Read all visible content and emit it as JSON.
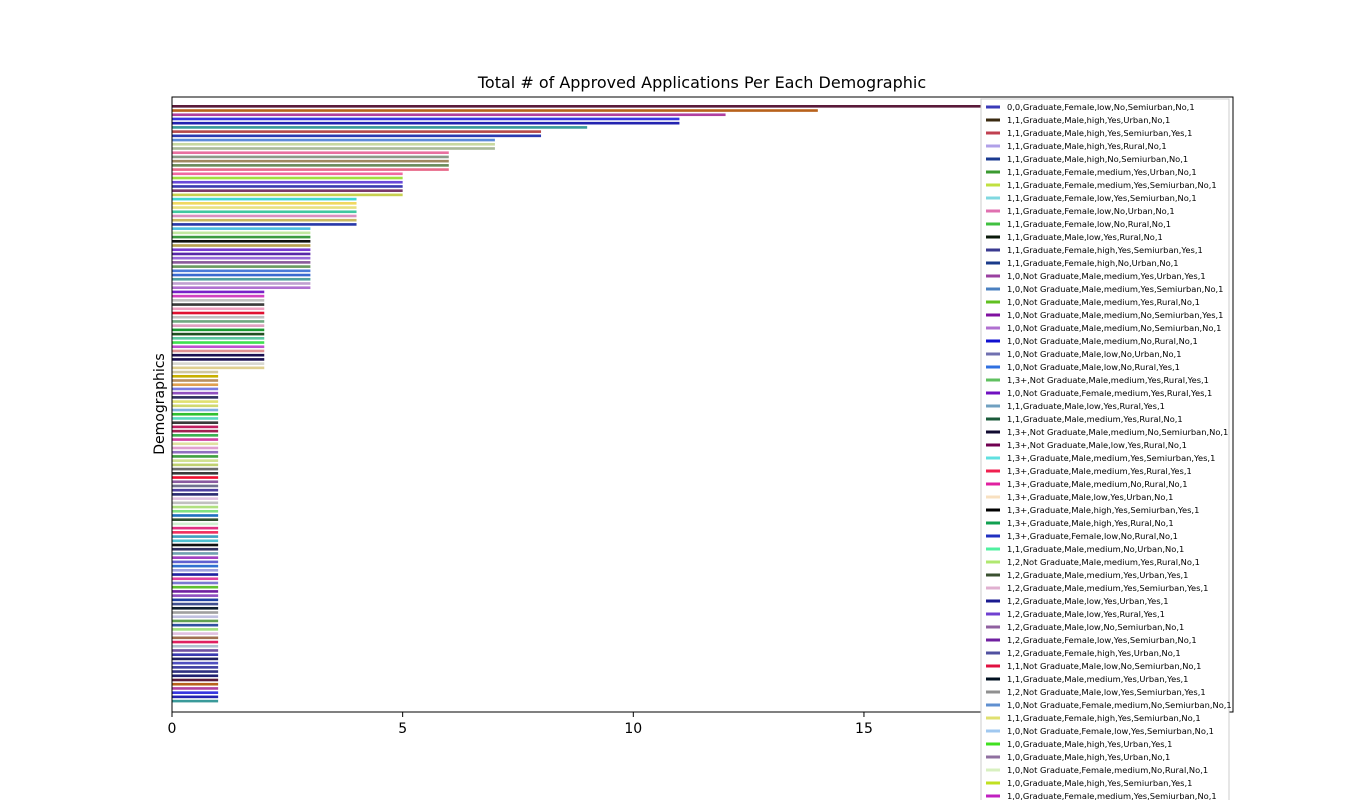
{
  "chart_data": {
    "type": "bar",
    "orientation": "horizontal",
    "title": "Total # of Approved Applications Per Each Demographic",
    "xlabel": "",
    "ylabel": "Demographics",
    "xlim": [
      0,
      23
    ],
    "x_ticks": [
      "0",
      "5",
      "10",
      "15"
    ],
    "grid": false,
    "legend_position": "right, overflowing plot",
    "values": [
      20,
      14,
      12,
      11,
      11,
      9,
      8,
      8,
      7,
      7,
      7,
      6,
      6,
      6,
      6,
      6,
      5,
      5,
      5,
      5,
      5,
      5,
      4,
      4,
      4,
      4,
      4,
      4,
      4,
      3,
      3,
      3,
      3,
      3,
      3,
      3,
      3,
      3,
      3,
      3,
      3,
      3,
      3,
      3,
      2,
      2,
      2,
      2,
      2,
      2,
      2,
      2,
      2,
      2,
      2,
      2,
      2,
      2,
      2,
      2,
      2,
      2,
      2,
      1,
      1,
      1,
      1,
      1,
      1,
      1,
      1,
      1,
      1,
      1,
      1,
      1,
      1,
      1,
      1,
      1,
      1,
      1,
      1,
      1,
      1,
      1,
      1,
      1,
      1,
      1,
      1,
      1,
      1,
      1,
      1,
      1,
      1,
      1,
      1,
      1,
      1,
      1,
      1,
      1,
      1,
      1,
      1,
      1,
      1,
      1,
      1,
      1,
      1,
      1,
      1,
      1,
      1,
      1,
      1,
      1,
      1,
      1,
      1,
      1,
      1,
      1,
      1,
      1,
      1,
      1,
      1,
      1,
      1,
      1,
      1,
      1,
      1,
      1,
      1,
      1,
      1,
      1
    ],
    "bar_colors": [
      "#5a1a3a",
      "#b8621b",
      "#b040a0",
      "#3535e0",
      "#2323b0",
      "#3a9a9a",
      "#b54a4a",
      "#2a3ab0",
      "#5b8ad8",
      "#c8d8a0",
      "#a8b898",
      "#e870a0",
      "#8a9a88",
      "#a08860",
      "#6a8a5a",
      "#e86a8a",
      "#f06aa0",
      "#a0e040",
      "#6a4ad8",
      "#3a3ab0",
      "#7a3a6a",
      "#c8d050",
      "#40d8d0",
      "#f0d860",
      "#e8e080",
      "#40c8a0",
      "#d890c0",
      "#c8b860",
      "#2838a8",
      "#50c0e0",
      "#c0e8a0",
      "#3a9a40",
      "#101010",
      "#b8a050",
      "#7a3ad0",
      "#5828a8",
      "#9868d8",
      "#8a5a9a",
      "#6a9a60",
      "#4a7ad8",
      "#3a6ad0",
      "#50a0a0",
      "#c0a0d0",
      "#b070d0",
      "#7820c8",
      "#d040c0",
      "#c0c0c0",
      "#3a3a3a",
      "#f0a0c0",
      "#e01030",
      "#c0c0c0",
      "#70a880",
      "#e0a0c0",
      "#1a9a30",
      "#205020",
      "#5ac8a0",
      "#40e050",
      "#c050d0",
      "#e09090",
      "#1a1050",
      "#1a1050",
      "#d8d8d0",
      "#e0d090",
      "#d0c8a0",
      "#c8b000",
      "#b89060",
      "#e0a050",
      "#7a7ae0",
      "#9050c0",
      "#303060",
      "#e0e070",
      "#d0d870",
      "#80b0e0",
      "#30c030",
      "#5ad8c0",
      "#3a3a3a",
      "#c02060",
      "#a02050",
      "#3ab050",
      "#d040a0",
      "#e0e0a0",
      "#e0a0d0",
      "#9070c0",
      "#40a040",
      "#d0e090",
      "#c0d070",
      "#6a6a6a",
      "#3a3a3a",
      "#f01030",
      "#8a5aa0",
      "#707090",
      "#5040a0",
      "#2a2a70",
      "#e0c0e0",
      "#c0c0c0",
      "#b0e080",
      "#80e080",
      "#2070c0",
      "#305030",
      "#d0f0d0",
      "#e03080",
      "#f03060",
      "#40a0c0",
      "#50c0d0",
      "#101010",
      "#303060",
      "#70a0b0",
      "#a040c0",
      "#6060d0",
      "#3070d0",
      "#a0a0e0",
      "#2020a0",
      "#e040a0",
      "#7a7ad0",
      "#60c030",
      "#7020a0",
      "#9050c0",
      "#2040a0",
      "#405090",
      "#102030",
      "#a0a0a0",
      "#c0c0e0",
      "#60a050",
      "#3050a0",
      "#a0e080",
      "#e0c0e0",
      "#a07050",
      "#e02060",
      "#b0c0d0",
      "#7050a0",
      "#3a3ab0",
      "#202060",
      "#5050c0",
      "#4040a0",
      "#303080",
      "#202070"
    ],
    "legend": [
      {
        "label": "0,0,Graduate,Female,low,No,Semiurban,No,1",
        "color": "#3a3ab8"
      },
      {
        "label": "1,1,Graduate,Male,high,Yes,Urban,No,1",
        "color": "#3a2a10"
      },
      {
        "label": "1,1,Graduate,Male,high,Yes,Semiurban,Yes,1",
        "color": "#c04050"
      },
      {
        "label": "1,1,Graduate,Male,high,Yes,Rural,No,1",
        "color": "#b0a0e8"
      },
      {
        "label": "1,1,Graduate,Male,high,No,Semiurban,No,1",
        "color": "#1a3a90"
      },
      {
        "label": "1,1,Graduate,Female,medium,Yes,Urban,No,1",
        "color": "#3a9a30"
      },
      {
        "label": "1,1,Graduate,Female,medium,Yes,Semiurban,No,1",
        "color": "#c0e040"
      },
      {
        "label": "1,1,Graduate,Female,low,Yes,Semiurban,No,1",
        "color": "#80d8e0"
      },
      {
        "label": "1,1,Graduate,Female,low,No,Urban,No,1",
        "color": "#e070b0"
      },
      {
        "label": "1,1,Graduate,Female,low,No,Rural,No,1",
        "color": "#40c040"
      },
      {
        "label": "1,1,Graduate,Male,low,Yes,Rural,No,1",
        "color": "#0a1a0a"
      },
      {
        "label": "1,1,Graduate,Female,high,Yes,Semiurban,Yes,1",
        "color": "#3a3a90"
      },
      {
        "label": "1,1,Graduate,Female,high,No,Urban,No,1",
        "color": "#1a3a8a"
      },
      {
        "label": "1,0,Not Graduate,Male,medium,Yes,Urban,Yes,1",
        "color": "#9a40a0"
      },
      {
        "label": "1,0,Not Graduate,Male,medium,Yes,Semiurban,No,1",
        "color": "#4a80c0"
      },
      {
        "label": "1,0,Not Graduate,Male,medium,Yes,Rural,No,1",
        "color": "#60c020"
      },
      {
        "label": "1,0,Not Graduate,Male,medium,No,Semiurban,Yes,1",
        "color": "#8010a0"
      },
      {
        "label": "1,0,Not Graduate,Male,medium,No,Semiurban,No,1",
        "color": "#b070d0"
      },
      {
        "label": "1,0,Not Graduate,Male,medium,No,Rural,No,1",
        "color": "#1010d0"
      },
      {
        "label": "1,0,Not Graduate,Male,low,No,Urban,No,1",
        "color": "#7070b0"
      },
      {
        "label": "1,0,Not Graduate,Male,low,No,Rural,Yes,1",
        "color": "#3070e0"
      },
      {
        "label": "1,3+,Not Graduate,Male,medium,Yes,Rural,Yes,1",
        "color": "#60c060"
      },
      {
        "label": "1,0,Not Graduate,Female,medium,Yes,Rural,Yes,1",
        "color": "#7010c0"
      },
      {
        "label": "1,1,Graduate,Male,low,Yes,Rural,Yes,1",
        "color": "#70a0c0"
      },
      {
        "label": "1,1,Graduate,Male,medium,Yes,Rural,No,1",
        "color": "#1a5a3a"
      },
      {
        "label": "1,3+,Not Graduate,Male,medium,No,Semiurban,No,1",
        "color": "#100a30"
      },
      {
        "label": "1,3+,Not Graduate,Male,low,Yes,Rural,No,1",
        "color": "#700050"
      },
      {
        "label": "1,3+,Graduate,Male,medium,Yes,Semiurban,Yes,1",
        "color": "#60e0e0"
      },
      {
        "label": "1,3+,Graduate,Male,medium,Yes,Rural,Yes,1",
        "color": "#f02050"
      },
      {
        "label": "1,3+,Graduate,Male,medium,No,Rural,No,1",
        "color": "#e020a0"
      },
      {
        "label": "1,3+,Graduate,Male,low,Yes,Urban,No,1",
        "color": "#f8e0c0"
      },
      {
        "label": "1,3+,Graduate,Male,high,Yes,Semiurban,Yes,1",
        "color": "#000000"
      },
      {
        "label": "1,3+,Graduate,Male,high,Yes,Rural,No,1",
        "color": "#10a050"
      },
      {
        "label": "1,3+,Graduate,Female,low,No,Rural,No,1",
        "color": "#2030c0"
      },
      {
        "label": "1,1,Graduate,Male,medium,No,Urban,No,1",
        "color": "#50f0a0"
      },
      {
        "label": "1,2,Not Graduate,Male,medium,Yes,Rural,No,1",
        "color": "#b0e870"
      },
      {
        "label": "1,2,Graduate,Male,medium,Yes,Urban,Yes,1",
        "color": "#3a5030"
      },
      {
        "label": "1,2,Graduate,Male,medium,Yes,Semiurban,Yes,1",
        "color": "#e0b0d0"
      },
      {
        "label": "1,2,Graduate,Male,low,Yes,Urban,Yes,1",
        "color": "#1a1a90"
      },
      {
        "label": "1,2,Graduate,Male,low,Yes,Rural,Yes,1",
        "color": "#7040d0"
      },
      {
        "label": "1,2,Graduate,Male,low,No,Semiurban,No,1",
        "color": "#9060a0"
      },
      {
        "label": "1,2,Graduate,Female,low,Yes,Semiurban,No,1",
        "color": "#7020a0"
      },
      {
        "label": "1,2,Graduate,Female,high,Yes,Urban,No,1",
        "color": "#5050a0"
      },
      {
        "label": "1,1,Not Graduate,Male,low,No,Semiurban,No,1",
        "color": "#e01040"
      },
      {
        "label": "1,1,Graduate,Male,medium,Yes,Urban,Yes,1",
        "color": "#001020"
      },
      {
        "label": "1,2,Not Graduate,Male,low,Yes,Semiurban,Yes,1",
        "color": "#909090"
      },
      {
        "label": "1,0,Not Graduate,Female,medium,No,Semiurban,No,1",
        "color": "#6090d0"
      },
      {
        "label": "1,1,Graduate,Female,high,Yes,Semiurban,No,1",
        "color": "#e0e070"
      },
      {
        "label": "1,0,Not Graduate,Female,low,Yes,Semiurban,No,1",
        "color": "#a0c8f0"
      },
      {
        "label": "1,0,Graduate,Male,high,Yes,Urban,Yes,1",
        "color": "#40e020"
      },
      {
        "label": "1,0,Graduate,Male,high,Yes,Urban,No,1",
        "color": "#9070a0"
      },
      {
        "label": "1,0,Not Graduate,Female,medium,No,Rural,No,1",
        "color": "#d8f0c0"
      },
      {
        "label": "1,0,Graduate,Male,high,Yes,Semiurban,Yes,1",
        "color": "#c0e020"
      },
      {
        "label": "1,0,Graduate,Female,medium,Yes,Semiurban,No,1",
        "color": "#c020c0"
      }
    ]
  }
}
